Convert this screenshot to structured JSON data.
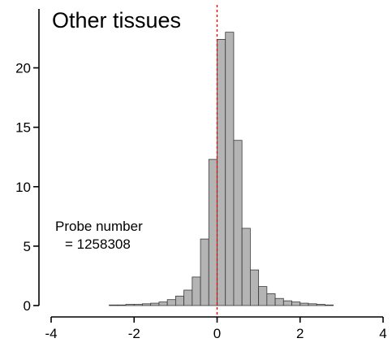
{
  "chart_data": {
    "type": "bar",
    "title": "Other tissues",
    "xlabel": "",
    "ylabel": "",
    "xlim": [
      -4,
      4
    ],
    "ylim": [
      0,
      24
    ],
    "x_ticks": [
      -4,
      -2,
      0,
      2,
      4
    ],
    "y_ticks": [
      0,
      5,
      10,
      15,
      20
    ],
    "x_tick_labels": [
      "-4",
      "-2",
      "0",
      "2",
      "4"
    ],
    "y_tick_labels": [
      "0",
      "5",
      "10",
      "15",
      "20"
    ],
    "bin_width": 0.2,
    "reference_line_x": 0,
    "bins": [
      {
        "x0": -2.6,
        "value": 0.05
      },
      {
        "x0": -2.4,
        "value": 0.05
      },
      {
        "x0": -2.2,
        "value": 0.1
      },
      {
        "x0": -2.0,
        "value": 0.1
      },
      {
        "x0": -1.8,
        "value": 0.15
      },
      {
        "x0": -1.6,
        "value": 0.2
      },
      {
        "x0": -1.4,
        "value": 0.3
      },
      {
        "x0": -1.2,
        "value": 0.5
      },
      {
        "x0": -1.0,
        "value": 0.8
      },
      {
        "x0": -0.8,
        "value": 1.3
      },
      {
        "x0": -0.6,
        "value": 2.4
      },
      {
        "x0": -0.4,
        "value": 5.6
      },
      {
        "x0": -0.2,
        "value": 12.3
      },
      {
        "x0": 0.0,
        "value": 22.4
      },
      {
        "x0": 0.2,
        "value": 23.0
      },
      {
        "x0": 0.4,
        "value": 13.9
      },
      {
        "x0": 0.6,
        "value": 6.5
      },
      {
        "x0": 0.8,
        "value": 3.0
      },
      {
        "x0": 1.0,
        "value": 1.6
      },
      {
        "x0": 1.2,
        "value": 1.0
      },
      {
        "x0": 1.4,
        "value": 0.6
      },
      {
        "x0": 1.6,
        "value": 0.4
      },
      {
        "x0": 1.8,
        "value": 0.3
      },
      {
        "x0": 2.0,
        "value": 0.2
      },
      {
        "x0": 2.2,
        "value": 0.15
      },
      {
        "x0": 2.4,
        "value": 0.1
      },
      {
        "x0": 2.6,
        "value": 0.05
      }
    ],
    "annotation_line1": "Probe number",
    "annotation_line2": "= 1258308",
    "colors": {
      "bar_fill": "#b4b4b4",
      "bar_edge": "#3a3a3a",
      "reference_line": "#ff0000"
    }
  }
}
